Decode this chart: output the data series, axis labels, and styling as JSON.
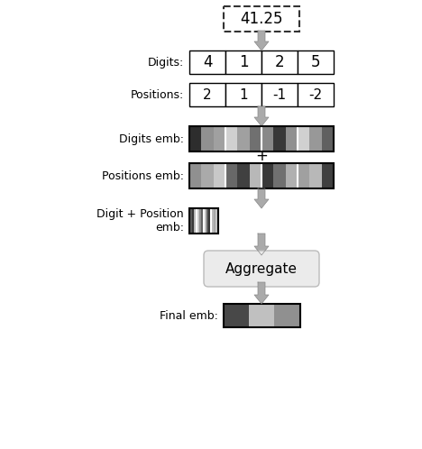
{
  "title_box": "41.25",
  "digits_label": "Digits:",
  "digits_values": [
    "4",
    "1",
    "2",
    "5"
  ],
  "positions_label": "Positions:",
  "positions_values": [
    "2",
    "1",
    "-1",
    "-2"
  ],
  "digits_emb_label": "Digits emb:",
  "positions_emb_label": "Positions emb:",
  "digit_pos_emb_label": "Digit + Position\nemb:",
  "aggregate_label": "Aggregate",
  "final_emb_label": "Final emb:",
  "digits_emb_colors": [
    [
      "#2d2d2d",
      "#909090",
      "#a0a0a0"
    ],
    [
      "#d0d0d0",
      "#a0a0a0",
      "#707070"
    ],
    [
      "#888888",
      "#383838",
      "#909090"
    ],
    [
      "#d0d0d0",
      "#989898",
      "#606060"
    ]
  ],
  "positions_emb_colors": [
    [
      "#909090",
      "#aaaaaa",
      "#c8c8c8"
    ],
    [
      "#686868",
      "#404040",
      "#b8b8b8"
    ],
    [
      "#383838",
      "#707070",
      "#b0b0b0"
    ],
    [
      "#a0a0a0",
      "#b8b8b8",
      "#404040"
    ]
  ],
  "digit_pos_emb_colors": [
    [
      "#585858",
      "#383838",
      "#b8b8b8"
    ],
    [
      "#c8c8c8",
      "#909090",
      "#606060"
    ],
    [
      "#c0c0c0",
      "#606060",
      "#303030"
    ],
    [
      "#b8b8b8",
      "#a8a8a8",
      "#c8c8c8"
    ]
  ],
  "final_emb_colors": [
    "#484848",
    "#c0c0c0",
    "#909090"
  ],
  "bg_color": "#ffffff",
  "arrow_color": "#aaaaaa",
  "arrow_edge_color": "#888888"
}
